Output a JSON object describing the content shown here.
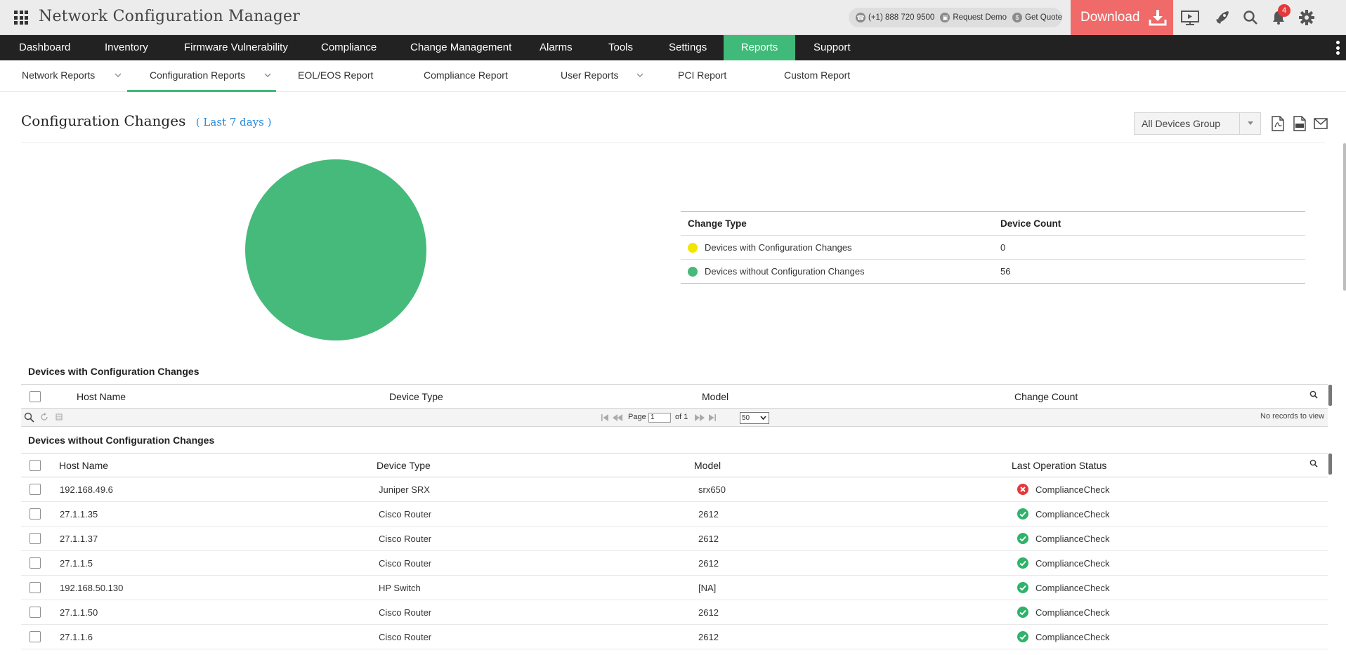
{
  "app": {
    "title": "Network Configuration Manager"
  },
  "header": {
    "phone": "(+1) 888 720 9500",
    "request_demo": "Request Demo",
    "get_quote": "Get Quote",
    "download": "Download",
    "notification_count": "4"
  },
  "main_nav": {
    "items": [
      {
        "label": "Dashboard"
      },
      {
        "label": "Inventory"
      },
      {
        "label": "Firmware Vulnerability"
      },
      {
        "label": "Compliance"
      },
      {
        "label": "Change Management"
      },
      {
        "label": "Alarms"
      },
      {
        "label": "Tools"
      },
      {
        "label": "Settings"
      },
      {
        "label": "Reports"
      },
      {
        "label": "Support"
      }
    ],
    "active": "Reports"
  },
  "sub_nav": {
    "items": [
      {
        "label": "Network Reports"
      },
      {
        "label": "Configuration Reports"
      },
      {
        "label": "EOL/EOS Report"
      },
      {
        "label": "Compliance Report"
      },
      {
        "label": "User Reports"
      },
      {
        "label": "PCI Report"
      },
      {
        "label": "Custom Report"
      }
    ],
    "active": "Configuration Reports"
  },
  "page": {
    "title": "Configuration Changes",
    "range": "( Last 7 days )",
    "group_select": "All Devices Group"
  },
  "colors": {
    "accent": "#3fba78",
    "pie_with_changes": "#f2e500",
    "pie_without_changes": "#46ba7b",
    "download": "#f06a6a",
    "error": "#e5383b",
    "success": "#2fb26a"
  },
  "chart_data": {
    "type": "pie",
    "slices": [
      {
        "label": "Devices with Configuration Changes",
        "value": 0
      },
      {
        "label": "Devices without Configuration Changes",
        "value": 56
      }
    ]
  },
  "legend": {
    "col_change_type": "Change Type",
    "col_device_count": "Device Count",
    "rows": [
      {
        "label": "Devices with Configuration Changes",
        "count": "0"
      },
      {
        "label": "Devices without Configuration Changes",
        "count": "56"
      }
    ]
  },
  "with_changes": {
    "title": "Devices with Configuration Changes",
    "columns": {
      "host": "Host Name",
      "type": "Device Type",
      "model": "Model",
      "count": "Change Count"
    },
    "pager": {
      "page_label": "Page",
      "page_value": "1",
      "of_label": "of 1",
      "page_size": "50",
      "empty": "No records to view"
    }
  },
  "without_changes": {
    "title": "Devices without Configuration Changes",
    "columns": {
      "host": "Host Name",
      "type": "Device Type",
      "model": "Model",
      "status": "Last Operation Status"
    },
    "rows": [
      {
        "host": "192.168.49.6",
        "type": "Juniper SRX",
        "model": "srx650",
        "status": "ComplianceCheck",
        "ok": false
      },
      {
        "host": "27.1.1.35",
        "type": "Cisco Router",
        "model": "2612",
        "status": "ComplianceCheck",
        "ok": true
      },
      {
        "host": "27.1.1.37",
        "type": "Cisco Router",
        "model": "2612",
        "status": "ComplianceCheck",
        "ok": true
      },
      {
        "host": "27.1.1.5",
        "type": "Cisco Router",
        "model": "2612",
        "status": "ComplianceCheck",
        "ok": true
      },
      {
        "host": "192.168.50.130",
        "type": "HP Switch",
        "model": "[NA]",
        "status": "ComplianceCheck",
        "ok": true
      },
      {
        "host": "27.1.1.50",
        "type": "Cisco Router",
        "model": "2612",
        "status": "ComplianceCheck",
        "ok": true
      },
      {
        "host": "27.1.1.6",
        "type": "Cisco Router",
        "model": "2612",
        "status": "ComplianceCheck",
        "ok": true
      }
    ]
  }
}
